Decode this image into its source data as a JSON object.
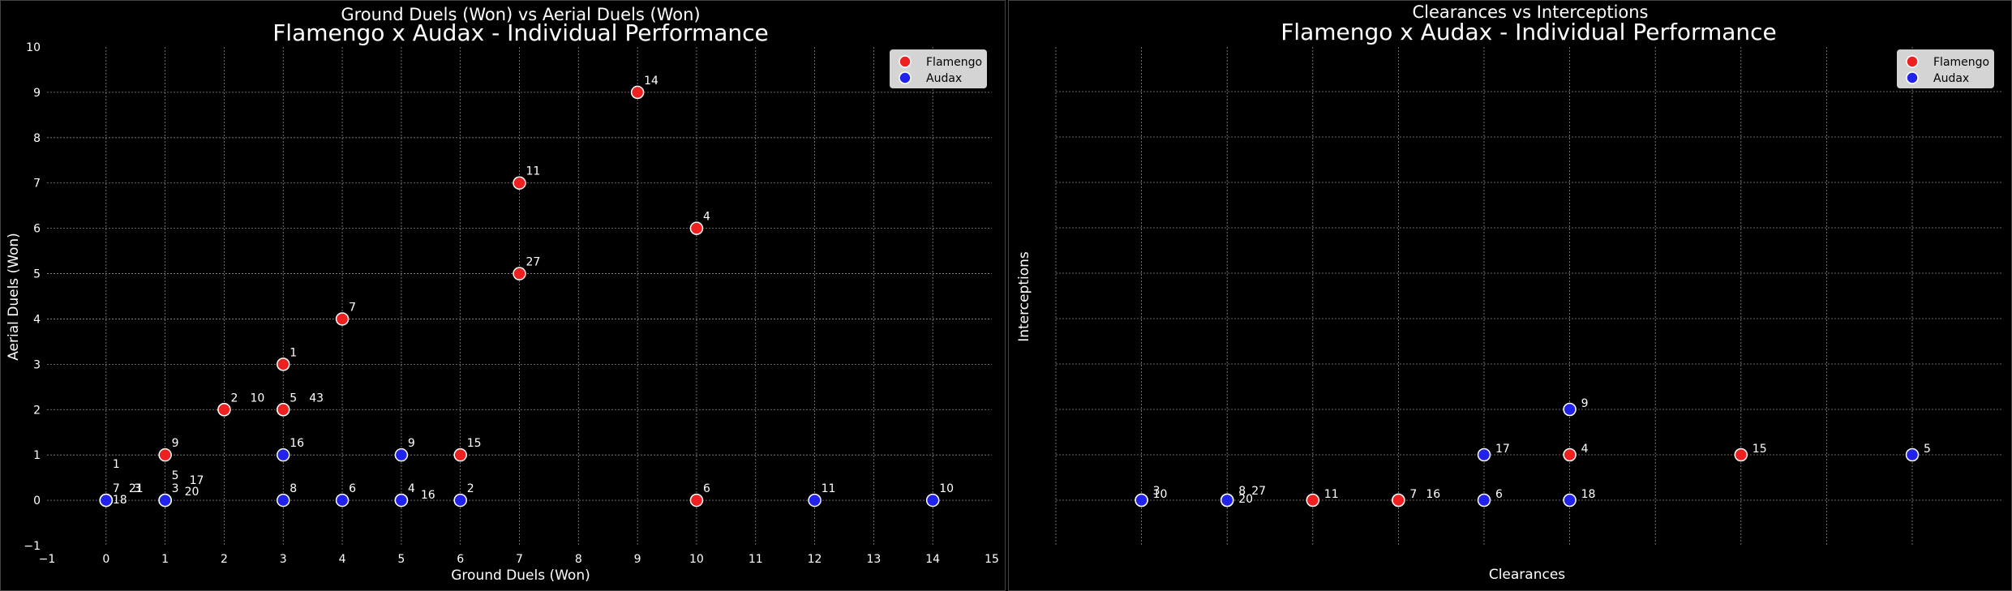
{
  "colors": {
    "background": "#000000",
    "grid": "#8a8a8a",
    "flamengo": "#ee2020",
    "audax": "#2222ee",
    "marker_edge": "#ffffff"
  },
  "chart_data": [
    {
      "type": "scatter",
      "suptitle": "Ground Duels (Won) vs Aerial Duels (Won)",
      "title": "Flamengo x Audax - Individual Performance",
      "xlabel": "Ground Duels (Won)",
      "ylabel": "Aerial Duels (Won)",
      "xlim": [
        -1,
        15
      ],
      "ylim": [
        -1,
        10
      ],
      "xticks": [
        "−1",
        "0",
        "1",
        "2",
        "3",
        "4",
        "5",
        "6",
        "7",
        "8",
        "9",
        "10",
        "11",
        "12",
        "13",
        "14",
        "15"
      ],
      "yticks": [
        "−1",
        "0",
        "1",
        "2",
        "3",
        "4",
        "5",
        "6",
        "7",
        "8",
        "9",
        "10"
      ],
      "grid": true,
      "legend_position": "top-right",
      "series": [
        {
          "name": "Flamengo",
          "color": "#ee2020",
          "points": [
            {
              "x": 9,
              "y": 9,
              "label": "14"
            },
            {
              "x": 7,
              "y": 7,
              "label": "11"
            },
            {
              "x": 10,
              "y": 6,
              "label": "4"
            },
            {
              "x": 7,
              "y": 5,
              "label": "27"
            },
            {
              "x": 4,
              "y": 4,
              "label": "7"
            },
            {
              "x": 3,
              "y": 3,
              "label": "1"
            },
            {
              "x": 2,
              "y": 2,
              "label": "2"
            },
            {
              "x": 2,
              "y": 2,
              "label": "10",
              "dx": 24
            },
            {
              "x": 3,
              "y": 2,
              "label": "5"
            },
            {
              "x": 3,
              "y": 2,
              "label": "43",
              "dx": 24
            },
            {
              "x": 1,
              "y": 1,
              "label": "9"
            },
            {
              "x": 6,
              "y": 1,
              "label": "15"
            },
            {
              "x": 10,
              "y": 0,
              "label": "6"
            }
          ]
        },
        {
          "name": "Audax",
          "color": "#2222ee",
          "points": [
            {
              "x": 0,
              "y": 0,
              "label": "1",
              "dy": -30
            },
            {
              "x": 0,
              "y": 0,
              "label": "7"
            },
            {
              "x": 0,
              "y": 0,
              "label": "21",
              "dx": 20
            },
            {
              "x": 0,
              "y": 0,
              "label": "3",
              "dx": 26
            },
            {
              "x": 0,
              "y": 0,
              "label": "18",
              "dy": 14
            },
            {
              "x": 1,
              "y": 0,
              "label": "5",
              "dy": -16
            },
            {
              "x": 1,
              "y": 0,
              "label": "17",
              "dx": 22,
              "dy": -10
            },
            {
              "x": 1,
              "y": 0,
              "label": "3"
            },
            {
              "x": 1,
              "y": 0,
              "label": "20",
              "dx": 16,
              "dy": 4
            },
            {
              "x": 3,
              "y": 1,
              "label": "16"
            },
            {
              "x": 3,
              "y": 0,
              "label": "8"
            },
            {
              "x": 4,
              "y": 0,
              "label": "6"
            },
            {
              "x": 5,
              "y": 1,
              "label": "9"
            },
            {
              "x": 5,
              "y": 0,
              "label": "4"
            },
            {
              "x": 5,
              "y": 0,
              "label": "16",
              "dx": 16,
              "dy": 8
            },
            {
              "x": 6,
              "y": 0,
              "label": "2"
            },
            {
              "x": 12,
              "y": 0,
              "label": "11"
            },
            {
              "x": 14,
              "y": 0,
              "label": "10"
            }
          ]
        }
      ]
    },
    {
      "type": "scatter",
      "suptitle": "Clearances vs Interceptions",
      "title": "Flamengo x Audax - Individual Performance",
      "xlabel": "Clearances",
      "ylabel": "Interceptions",
      "grid": true,
      "legend_position": "top-right",
      "series": [
        {
          "name": "Flamengo",
          "color": "#ee2020",
          "points": [
            {
              "x": 3,
              "y": 0,
              "label": "11"
            },
            {
              "x": 4,
              "y": 0,
              "label": "7"
            },
            {
              "x": 4,
              "y": 0,
              "label": "16",
              "dx": 20
            },
            {
              "x": 6,
              "y": 1,
              "label": "4"
            },
            {
              "x": 8,
              "y": 1,
              "label": "15"
            }
          ]
        },
        {
          "name": "Audax",
          "color": "#2222ee",
          "points": [
            {
              "x": 1,
              "y": 0,
              "label": "3",
              "dy": -4
            },
            {
              "x": 1,
              "y": 0,
              "label": "10"
            },
            {
              "x": 2,
              "y": 0,
              "label": "8",
              "dy": -4
            },
            {
              "x": 2,
              "y": 0,
              "label": "27",
              "dx": 16,
              "dy": -4
            },
            {
              "x": 2,
              "y": 0,
              "label": "20",
              "dy": 6
            },
            {
              "x": 5,
              "y": 0,
              "label": "6"
            },
            {
              "x": 5,
              "y": 1,
              "label": "17"
            },
            {
              "x": 6,
              "y": 2,
              "label": "9"
            },
            {
              "x": 6,
              "y": 0,
              "label": "18"
            },
            {
              "x": 10,
              "y": 1,
              "label": "5"
            }
          ]
        }
      ]
    }
  ]
}
